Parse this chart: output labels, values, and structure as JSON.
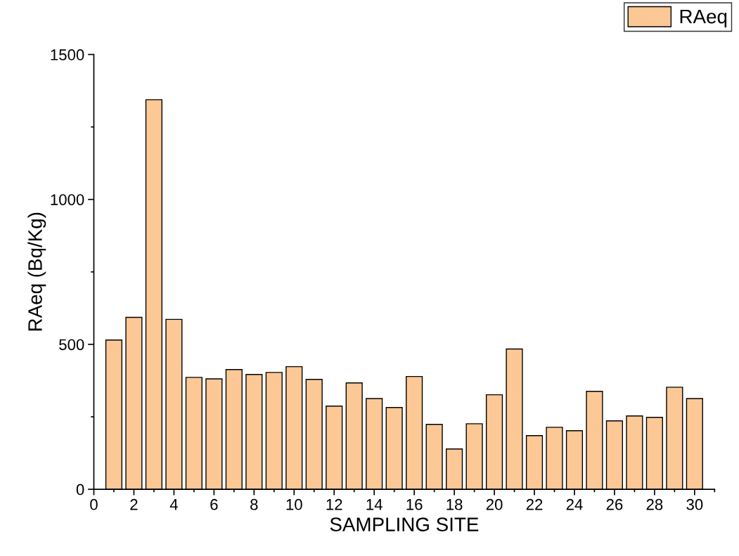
{
  "chart_data": {
    "type": "bar",
    "xlabel": "SAMPLING SITE",
    "ylabel": "RAeq (Bq/Kg)",
    "x": [
      1,
      2,
      3,
      4,
      5,
      6,
      7,
      8,
      9,
      10,
      11,
      12,
      13,
      14,
      15,
      16,
      17,
      18,
      19,
      20,
      21,
      22,
      23,
      24,
      25,
      26,
      27,
      28,
      29,
      30
    ],
    "series": [
      {
        "name": "RAeq",
        "color": "#fcc896",
        "values": [
          515,
          593,
          1344,
          586,
          386,
          381,
          413,
          396,
          403,
          423,
          379,
          287,
          367,
          313,
          282,
          389,
          224,
          139,
          226,
          326,
          484,
          185,
          214,
          202,
          338,
          236,
          253,
          248,
          352,
          313
        ]
      }
    ],
    "xlim": [
      0,
      31
    ],
    "xticks": [
      0,
      2,
      4,
      6,
      8,
      10,
      12,
      14,
      16,
      18,
      20,
      22,
      24,
      26,
      28,
      30
    ],
    "ylim": [
      0,
      1500
    ],
    "yticks": [
      0,
      500,
      1000,
      1500
    ],
    "grid": false,
    "legend": "top right"
  }
}
